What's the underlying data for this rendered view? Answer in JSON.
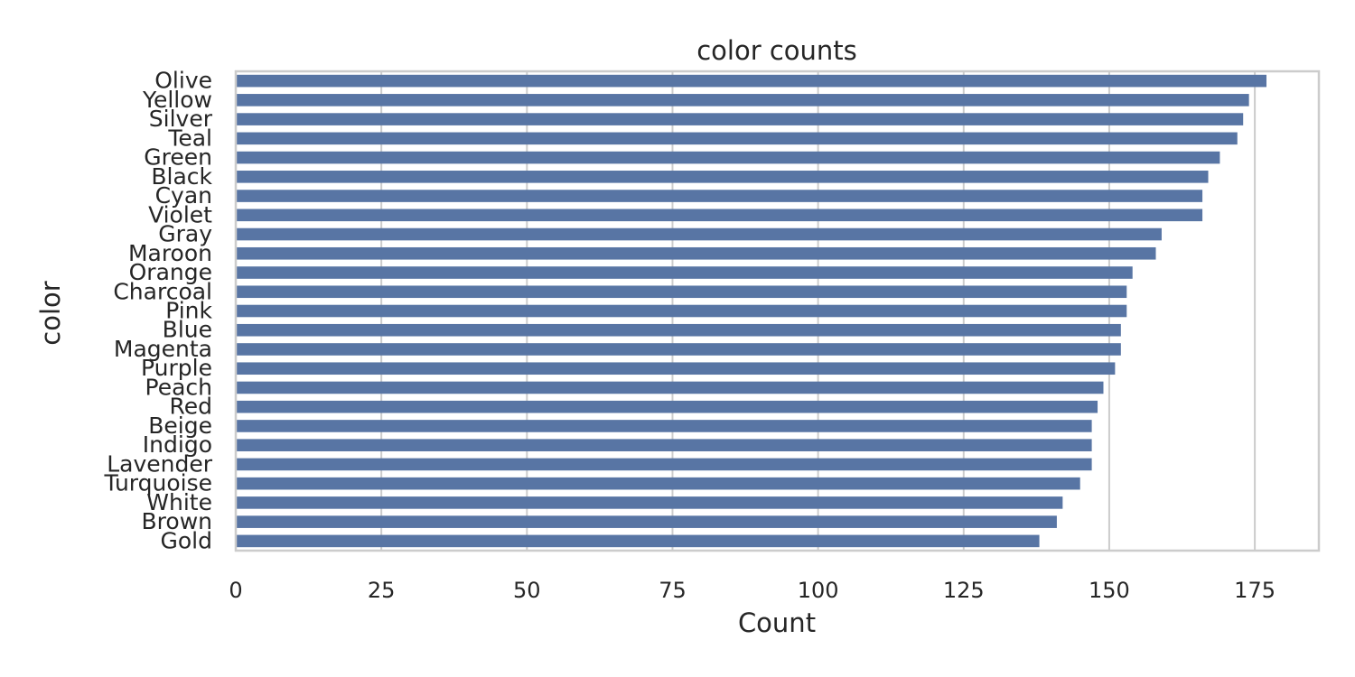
{
  "chart_data": {
    "type": "bar",
    "orientation": "horizontal",
    "title": "color counts",
    "xlabel": "Count",
    "ylabel": "color",
    "xlim": [
      0,
      186
    ],
    "xticks": [
      0,
      25,
      50,
      75,
      100,
      125,
      150,
      175
    ],
    "grid": true,
    "legend": "none",
    "bar_color": "#5875a4",
    "categories": [
      "Olive",
      "Yellow",
      "Silver",
      "Teal",
      "Green",
      "Black",
      "Cyan",
      "Violet",
      "Gray",
      "Maroon",
      "Orange",
      "Charcoal",
      "Pink",
      "Blue",
      "Magenta",
      "Purple",
      "Peach",
      "Red",
      "Beige",
      "Indigo",
      "Lavender",
      "Turquoise",
      "White",
      "Brown",
      "Gold"
    ],
    "values": [
      177,
      174,
      173,
      172,
      169,
      167,
      166,
      166,
      159,
      158,
      154,
      153,
      153,
      152,
      152,
      151,
      149,
      148,
      147,
      147,
      147,
      145,
      142,
      141,
      138
    ]
  }
}
